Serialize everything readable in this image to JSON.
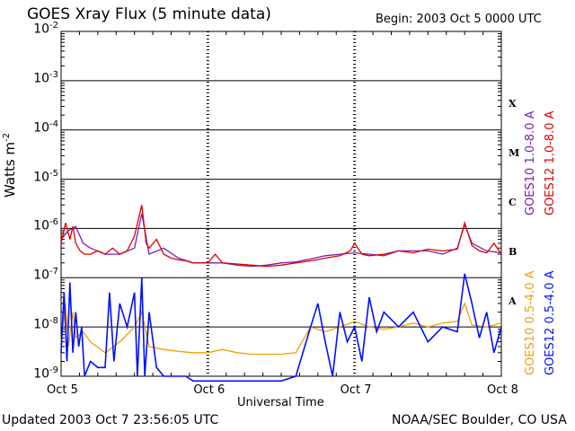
{
  "page": {
    "title": "GOES Xray Flux (5 minute data)",
    "begin": "Begin:  2003 Oct 5 0000 UTC",
    "updated": "Updated 2003 Oct  7 23:56:05 UTC",
    "credit": "NOAA/SEC Boulder, CO USA"
  },
  "colors": {
    "goes10_long": "#7a1fb0",
    "goes12_long": "#e00000",
    "goes10_short": "#f0a000",
    "goes12_short": "#0010ff",
    "grid": "#000000"
  },
  "chart_data": {
    "type": "line",
    "title": "GOES Xray Flux (5 minute data)",
    "xlabel": "Universal Time",
    "ylabel": "Watts m",
    "ylabel_exp": "-2",
    "yscale": "log",
    "ylim": [
      1e-09,
      0.01
    ],
    "xlim_days": [
      0,
      3
    ],
    "x_ticks": [
      "Oct 5",
      "Oct 6",
      "Oct 7",
      "Oct 8"
    ],
    "y_ticks": [
      {
        "base": "10",
        "exp": "-2"
      },
      {
        "base": "10",
        "exp": "-3"
      },
      {
        "base": "10",
        "exp": "-4"
      },
      {
        "base": "10",
        "exp": "-5"
      },
      {
        "base": "10",
        "exp": "-6"
      },
      {
        "base": "10",
        "exp": "-7"
      },
      {
        "base": "10",
        "exp": "-8"
      },
      {
        "base": "10",
        "exp": "-9"
      }
    ],
    "flare_classes": [
      "X",
      "M",
      "C",
      "B",
      "A"
    ],
    "grid": true,
    "legend_placement": "right, vertical",
    "series": [
      {
        "name": "GOES10 1.0-8.0 A",
        "color_key": "goes10_long",
        "x": [
          0,
          0.05,
          0.1,
          0.15,
          0.2,
          0.3,
          0.4,
          0.5,
          0.55,
          0.6,
          0.7,
          0.8,
          0.9,
          1.0,
          1.1,
          1.2,
          1.3,
          1.4,
          1.5,
          1.6,
          1.7,
          1.8,
          1.9,
          2.0,
          2.1,
          2.2,
          2.3,
          2.4,
          2.5,
          2.6,
          2.7,
          2.75,
          2.8,
          2.9,
          3.0
        ],
        "y": [
          6e-07,
          9e-07,
          1.1e-06,
          5e-07,
          4e-07,
          3e-07,
          3e-07,
          4e-07,
          2e-06,
          3e-07,
          4e-07,
          2.5e-07,
          2e-07,
          2e-07,
          2e-07,
          1.8e-07,
          1.7e-07,
          1.8e-07,
          2e-07,
          2.1e-07,
          2.4e-07,
          2.8e-07,
          3e-07,
          3.2e-07,
          3e-07,
          2.8e-07,
          3.5e-07,
          3.5e-07,
          3.5e-07,
          3e-07,
          4e-07,
          1.2e-06,
          5e-07,
          3.5e-07,
          3.2e-07
        ]
      },
      {
        "name": "GOES12 1.0-8.0 A",
        "color_key": "goes12_long",
        "x": [
          0,
          0.03,
          0.06,
          0.08,
          0.1,
          0.13,
          0.16,
          0.2,
          0.25,
          0.3,
          0.35,
          0.4,
          0.45,
          0.5,
          0.55,
          0.58,
          0.6,
          0.65,
          0.7,
          0.75,
          0.8,
          0.85,
          0.9,
          1.0,
          1.05,
          1.1,
          1.2,
          1.3,
          1.4,
          1.5,
          1.6,
          1.7,
          1.8,
          1.9,
          1.97,
          2.0,
          2.05,
          2.1,
          2.2,
          2.3,
          2.4,
          2.5,
          2.6,
          2.7,
          2.75,
          2.8,
          2.85,
          2.9,
          2.95,
          3.0
        ],
        "y": [
          5e-07,
          1.3e-06,
          6e-07,
          1.1e-06,
          5e-07,
          3.5e-07,
          3e-07,
          3e-07,
          3.5e-07,
          3e-07,
          4e-07,
          3e-07,
          3.5e-07,
          7e-07,
          3e-06,
          5e-07,
          4e-07,
          6e-07,
          3e-07,
          2.5e-07,
          2.3e-07,
          2.2e-07,
          2e-07,
          2e-07,
          3e-07,
          2e-07,
          1.9e-07,
          1.8e-07,
          1.7e-07,
          1.8e-07,
          2e-07,
          2.2e-07,
          2.5e-07,
          2.8e-07,
          3.5e-07,
          5e-07,
          3e-07,
          2.8e-07,
          3e-07,
          3.5e-07,
          3.2e-07,
          3.8e-07,
          3.5e-07,
          3.8e-07,
          1.3e-06,
          4.5e-07,
          3.5e-07,
          3.2e-07,
          5e-07,
          3e-07
        ]
      },
      {
        "name": "GOES10 0.5-4.0 A",
        "color_key": "goes10_short",
        "x": [
          0,
          0.03,
          0.05,
          0.08,
          0.1,
          0.15,
          0.2,
          0.3,
          0.4,
          0.5,
          0.55,
          0.6,
          0.7,
          0.8,
          0.9,
          1.0,
          1.1,
          1.2,
          1.3,
          1.4,
          1.5,
          1.6,
          1.7,
          1.8,
          1.9,
          2.0,
          2.1,
          2.2,
          2.3,
          2.4,
          2.5,
          2.6,
          2.7,
          2.75,
          2.8,
          2.9,
          3.0
        ],
        "y": [
          5e-09,
          3e-08,
          4e-09,
          2e-08,
          6e-09,
          8e-09,
          5e-09,
          3e-09,
          5e-09,
          1e-08,
          2e-08,
          4e-09,
          3.5e-09,
          3.2e-09,
          3e-09,
          3e-09,
          3.5e-09,
          3e-09,
          2.8e-09,
          2.8e-09,
          2.8e-09,
          3e-09,
          1e-08,
          8e-09,
          1e-08,
          1.3e-08,
          1e-08,
          9e-09,
          1e-08,
          1.2e-08,
          1e-08,
          1.2e-08,
          1.3e-08,
          3e-08,
          1.1e-08,
          1e-08,
          1.2e-08
        ]
      },
      {
        "name": "GOES12 0.5-4.0 A",
        "color_key": "goes12_short",
        "x": [
          0,
          0.02,
          0.04,
          0.06,
          0.08,
          0.1,
          0.12,
          0.14,
          0.16,
          0.2,
          0.25,
          0.3,
          0.33,
          0.36,
          0.4,
          0.45,
          0.5,
          0.52,
          0.55,
          0.57,
          0.6,
          0.65,
          0.7,
          0.72,
          0.75,
          0.8,
          0.85,
          0.9,
          1.0,
          1.1,
          1.3,
          1.5,
          1.6,
          1.7,
          1.75,
          1.8,
          1.85,
          1.9,
          1.95,
          2.0,
          2.05,
          2.1,
          2.15,
          2.2,
          2.3,
          2.4,
          2.5,
          2.6,
          2.7,
          2.75,
          2.8,
          2.85,
          2.9,
          2.95,
          3.0
        ],
        "y": [
          3e-09,
          5e-08,
          2e-09,
          8e-08,
          3e-09,
          2e-08,
          4e-09,
          1e-08,
          1e-09,
          2e-09,
          1.5e-09,
          1.5e-09,
          5e-08,
          2e-09,
          3e-08,
          1e-08,
          5e-08,
          1e-09,
          1e-07,
          1e-09,
          2e-08,
          1.5e-09,
          1e-09,
          1e-09,
          1e-09,
          1e-09,
          1e-09,
          8e-10,
          8e-10,
          8e-10,
          8e-10,
          8e-10,
          1e-09,
          1e-08,
          3e-08,
          5e-09,
          1e-09,
          2e-08,
          5e-09,
          1e-08,
          2e-09,
          4e-08,
          8e-09,
          2e-08,
          1e-08,
          2e-08,
          5e-09,
          1e-08,
          8e-09,
          1.2e-07,
          3e-08,
          6e-09,
          2e-08,
          3e-09,
          1e-08
        ]
      }
    ]
  }
}
